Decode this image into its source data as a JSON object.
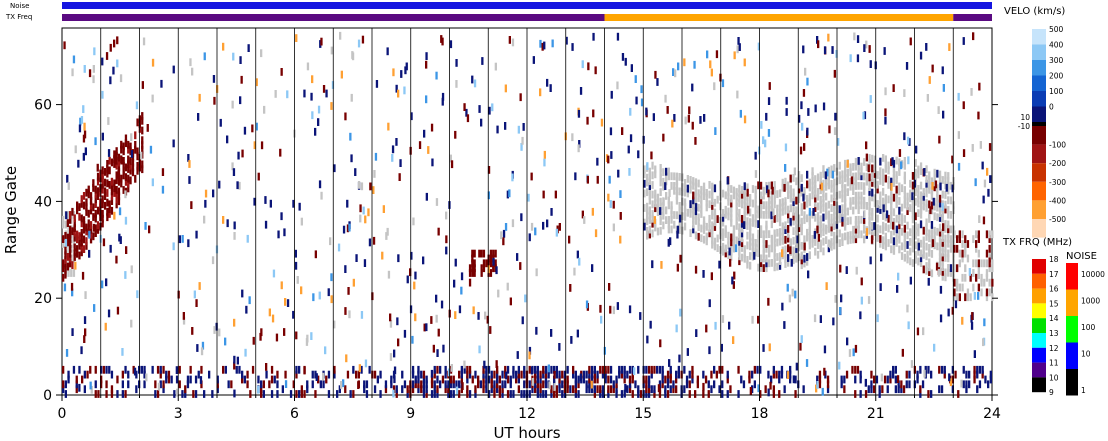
{
  "chart_data": {
    "type": "heatmap",
    "xlabel": "UT hours",
    "ylabel": "Range Gate",
    "xlim": [
      0,
      24
    ],
    "ylim": [
      0,
      75
    ],
    "x_ticks": [
      "0",
      "3",
      "6",
      "9",
      "12",
      "15",
      "18",
      "21",
      "24"
    ],
    "y_ticks": [
      "0",
      "20",
      "40",
      "60"
    ],
    "status_bars": [
      {
        "label": "Noise",
        "color": "#1515e0"
      },
      {
        "label": "TX Freq",
        "segments": [
          {
            "from": 0,
            "to": 14,
            "color": "#5a0a82"
          },
          {
            "from": 14,
            "to": 23,
            "color": "#ffa500"
          },
          {
            "from": 23,
            "to": 24,
            "color": "#5a0a82"
          }
        ]
      }
    ],
    "velocity_scale": {
      "title": "VELO (km/s)",
      "ticks_positive": [
        "500",
        "400",
        "300",
        "200",
        "100",
        "0"
      ],
      "ticks_negative": [
        "-100",
        "-200",
        "-300",
        "-400",
        "-500"
      ],
      "near_zero_labels": [
        "10",
        "-10"
      ],
      "colors_positive": [
        "#c6e4fb",
        "#8cc8f5",
        "#3c96e6",
        "#1464d2",
        "#0a3cb4",
        "#0a1478"
      ],
      "colors_negative": [
        "#780000",
        "#a01414",
        "#c83200",
        "#ff6400",
        "#ffa032",
        "#ffd7b4"
      ]
    },
    "frequency_scale": {
      "title": "TX FRQ (MHz)",
      "ticks": [
        "18",
        "17",
        "16",
        "15",
        "14",
        "13",
        "12",
        "11",
        "10",
        "9"
      ],
      "colors": [
        "#e00000",
        "#ff6000",
        "#ffa000",
        "#ffff00",
        "#00e000",
        "#00ffff",
        "#0000ff",
        "#50008c",
        "#000000"
      ]
    },
    "noise_scale": {
      "title": "NOISE",
      "ticks": [
        "10000",
        "1000",
        "100",
        "10",
        "1"
      ],
      "colors": [
        "#ff0000",
        "#ffa500",
        "#00ff00",
        "#0000ff",
        "#000000"
      ]
    },
    "ground_scatter_color": "#c4c4c4",
    "regions": [
      {
        "type": "ground_scatter",
        "x_range": [
          15.0,
          23.0
        ],
        "gate_range": [
          30,
          48
        ]
      },
      {
        "type": "ground_scatter",
        "x_range": [
          0.0,
          0.3
        ],
        "gate_range": [
          26,
          38
        ]
      },
      {
        "type": "ground_scatter",
        "x_range": [
          23.0,
          24.0
        ],
        "gate_range": [
          20,
          34
        ]
      },
      {
        "type": "negative_velocity_arc",
        "x_range": [
          0.0,
          2.1
        ],
        "gate_range": [
          25,
          54
        ]
      },
      {
        "type": "negative_velocity_patch",
        "x_range": [
          10.5,
          11.2
        ],
        "gate_range": [
          25,
          30
        ]
      },
      {
        "type": "mixed_velocity_near_range",
        "x_range": [
          0,
          24
        ],
        "gate_range": [
          0,
          6
        ]
      }
    ]
  }
}
